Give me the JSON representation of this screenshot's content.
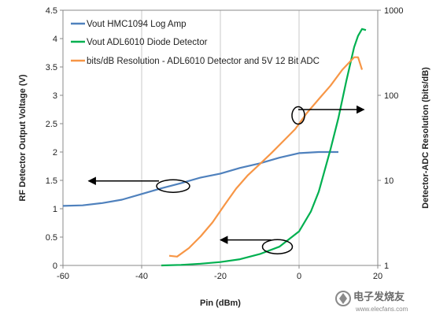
{
  "chart_data": {
    "type": "line",
    "xlabel": "Pin (dBm)",
    "ylabel_left": "RF Detector Output Voltage (V)",
    "ylabel_right": "Detector-ADC Resolution  (bits/dB)",
    "xlim": [
      -60,
      20
    ],
    "ylim_left": [
      0,
      4.5
    ],
    "ylim_right": [
      1,
      1000
    ],
    "right_axis_scale": "log",
    "x_ticks": [
      "-60",
      "-40",
      "-20",
      "0",
      "20"
    ],
    "y_ticks_left": [
      "0",
      "0.5",
      "1",
      "1.5",
      "2",
      "2.5",
      "3",
      "3.5",
      "4",
      "4.5"
    ],
    "y_ticks_right": [
      "1",
      "10",
      "100",
      "1000"
    ],
    "grid": "vertical",
    "legend_position": "top-left",
    "series": [
      {
        "name": "Vout HMC1094 Log Amp",
        "axis": "left",
        "color": "#4f81bd",
        "x": [
          -60,
          -55,
          -50,
          -45,
          -40,
          -35,
          -30,
          -25,
          -20,
          -15,
          -10,
          -5,
          0,
          5,
          10
        ],
        "y": [
          1.05,
          1.06,
          1.1,
          1.16,
          1.26,
          1.36,
          1.45,
          1.55,
          1.62,
          1.72,
          1.8,
          1.9,
          1.98,
          2.0,
          2.0
        ]
      },
      {
        "name": "Vout   ADL6010 Diode Detector",
        "axis": "left",
        "color": "#00b050",
        "x": [
          -35,
          -30,
          -25,
          -20,
          -15,
          -10,
          -5,
          0,
          3,
          5,
          8,
          10,
          12,
          14,
          15,
          16,
          17
        ],
        "y": [
          0.0,
          0.01,
          0.03,
          0.06,
          0.11,
          0.2,
          0.33,
          0.6,
          0.95,
          1.3,
          2.05,
          2.6,
          3.25,
          3.85,
          4.05,
          4.17,
          4.15
        ]
      },
      {
        "name": "bits/dB Resolution - ADL6010 Detector and 5V 12 Bit ADC",
        "axis": "right",
        "color": "#f79646",
        "x": [
          -33,
          -31,
          -28,
          -25,
          -22,
          -19,
          -16,
          -13,
          -10,
          -7,
          -4,
          -1,
          2,
          5,
          8,
          11,
          14,
          15,
          16
        ],
        "y": [
          1.3,
          1.27,
          1.6,
          2.2,
          3.2,
          5.1,
          8.0,
          11.5,
          15.5,
          21,
          29,
          40,
          62,
          90,
          130,
          200,
          280,
          280,
          200
        ]
      }
    ],
    "annotations": [
      "arrow-to-left-axis-upper",
      "arrow-to-left-axis-lower",
      "arrow-to-right-axis"
    ]
  },
  "watermark": {
    "text": "电子发烧友",
    "sub": "www.elecfans.com"
  }
}
